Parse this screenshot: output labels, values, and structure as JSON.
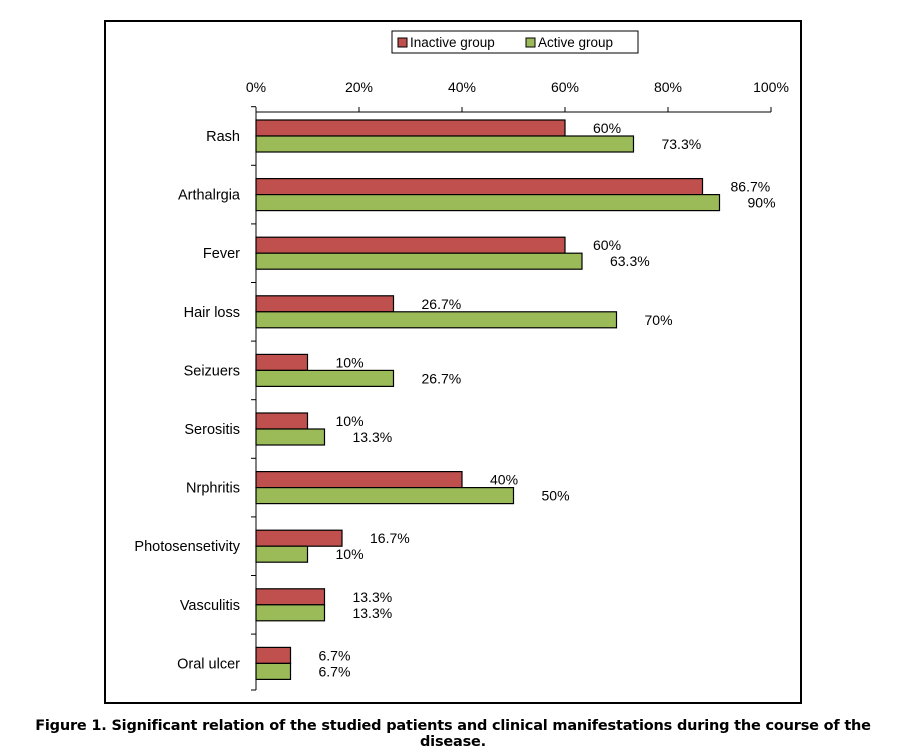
{
  "caption": "Figure 1. Significant relation of the studied patients and clinical manifestations during the course of the disease.",
  "chart_data": {
    "type": "bar",
    "orientation": "horizontal",
    "categories": [
      "Rash",
      "Arthalrgia",
      "Fever",
      "Hair loss",
      "Seizuers",
      "Serositis",
      "Nrphritis",
      "Photosensetivity",
      "Vasculitis",
      "Oral ulcer"
    ],
    "series": [
      {
        "name": "Inactive group",
        "color": "#c0504d",
        "values": [
          60,
          86.7,
          60,
          26.7,
          10,
          10,
          40,
          16.7,
          13.3,
          6.7
        ],
        "labels": [
          "60%",
          "86.7%",
          "60%",
          "26.7%",
          "10%",
          "10%",
          "40%",
          "16.7%",
          "13.3%",
          "6.7%"
        ]
      },
      {
        "name": "Active group",
        "color": "#9bbb59",
        "values": [
          73.3,
          90,
          63.3,
          70,
          26.7,
          13.3,
          50,
          10,
          13.3,
          6.7
        ],
        "labels": [
          "73.3%",
          "90%",
          "63.3%",
          "70%",
          "26.7%",
          "13.3%",
          "50%",
          "10%",
          "13.3%",
          "6.7%"
        ]
      }
    ],
    "xlim": [
      0,
      100
    ],
    "xticks": [
      "0%",
      "20%",
      "40%",
      "60%",
      "80%",
      "100%"
    ],
    "xaxis_position": "top",
    "grid": false,
    "legend_position": "top"
  }
}
